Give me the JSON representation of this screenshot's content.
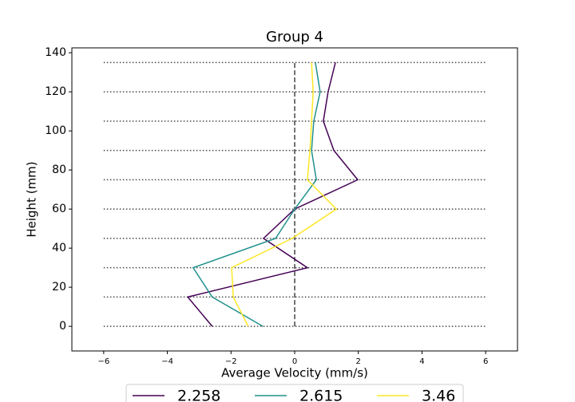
{
  "chart_data": {
    "type": "line",
    "title": "Group 4",
    "x_label": "Average Velocity (mm/s)",
    "y_label": "Height (mm)",
    "y": [
      0,
      15,
      30,
      45,
      60,
      75,
      90,
      105,
      120,
      135
    ],
    "series": [
      {
        "name": "2.258",
        "color": "#440154",
        "values": [
          -2.59,
          -3.36,
          0.4,
          -0.98,
          0,
          1.98,
          1.23,
          0.9,
          1.05,
          1.28
        ]
      },
      {
        "name": "2.615",
        "color": "#21918c",
        "values": [
          -1.0,
          -2.59,
          -3.19,
          -0.6,
          0,
          0.68,
          0.53,
          0.6,
          0.8,
          0.65
        ]
      },
      {
        "name": "3.46",
        "color": "#fde725",
        "values": [
          -1.46,
          -1.93,
          -1.98,
          -0.08,
          1.31,
          0.4,
          0.48,
          0.53,
          0.58,
          0.53
        ]
      }
    ],
    "xlim": [
      -7,
      7
    ],
    "ylim": [
      -12.6,
      142.5
    ],
    "xticks": [
      {
        "value": -6,
        "label": "−6"
      },
      {
        "value": -4,
        "label": "−4"
      },
      {
        "value": -2,
        "label": "−2"
      },
      0,
      2,
      4,
      6
    ],
    "yticks": [
      0,
      20,
      40,
      60,
      80,
      100,
      120,
      140
    ],
    "legend": "bottom"
  }
}
